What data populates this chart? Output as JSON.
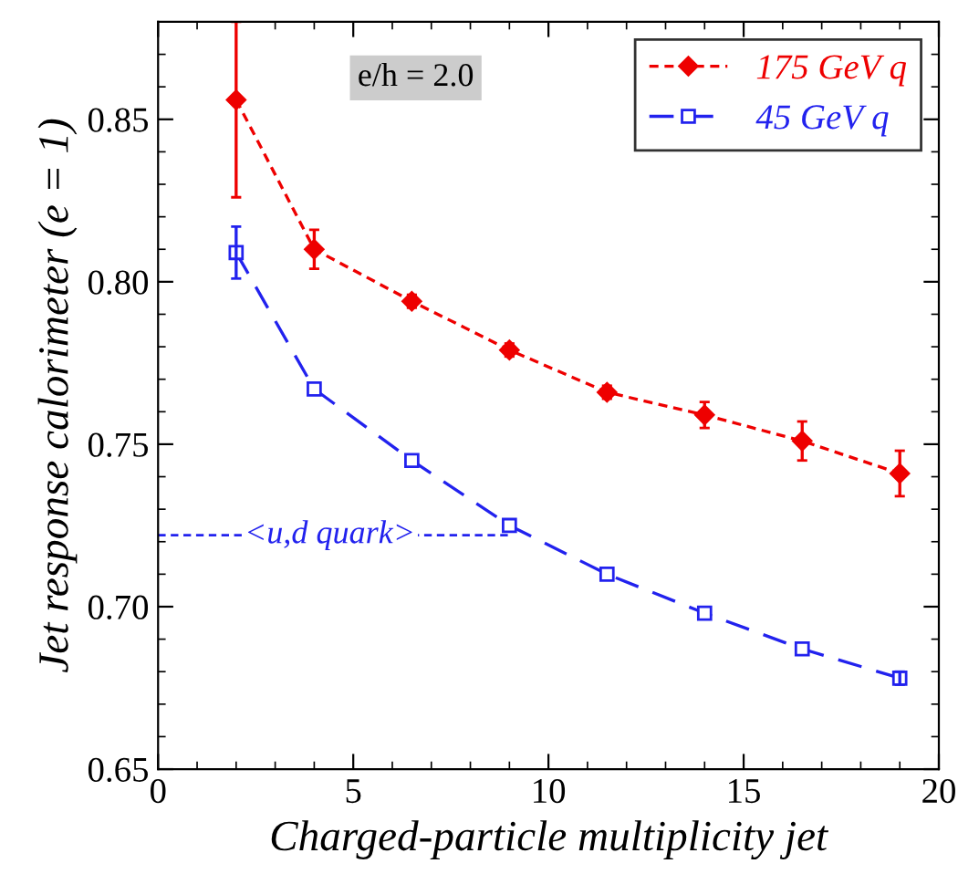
{
  "chart_data": {
    "type": "line",
    "xlabel": "Charged-particle multiplicity jet",
    "ylabel": "Jet response calorimeter (e = 1)",
    "xlim": [
      0,
      20
    ],
    "ylim": [
      0.65,
      0.88
    ],
    "xticks": [
      0,
      5,
      10,
      15,
      20
    ],
    "yticks": [
      0.65,
      {
        "value": 0.7,
        "label": "0.70"
      },
      0.75,
      {
        "value": 0.8,
        "label": "0.80"
      },
      0.85
    ],
    "legend": "top right",
    "grid": false,
    "series": [
      {
        "name": "175 GeV q",
        "color": "#ee0000",
        "marker": "diamond",
        "line_style": "dotted",
        "x": [
          2,
          4,
          6.5,
          9,
          11.5,
          14,
          16.5,
          19
        ],
        "values": [
          0.856,
          0.81,
          0.794,
          0.779,
          0.766,
          0.759,
          0.751,
          0.741
        ],
        "errors": [
          [
            0.826,
            0.88
          ],
          0.006,
          0.002,
          0.002,
          0.002,
          0.004,
          0.006,
          0.007
        ]
      },
      {
        "name": "45 GeV q",
        "color": "#2222ee",
        "marker": "square",
        "line_style": "dashed",
        "x": [
          2,
          4,
          6.5,
          9,
          11.5,
          14,
          16.5,
          19
        ],
        "values": [
          0.809,
          0.767,
          0.745,
          0.725,
          0.71,
          0.698,
          0.687,
          0.678
        ],
        "errors": [
          0.008,
          null,
          null,
          null,
          null,
          null,
          null,
          0.002
        ]
      }
    ],
    "ref_lines": [
      {
        "axis": "y",
        "value": 0.722,
        "label": "<u,d quark>",
        "color": "#2222ee",
        "line_style": "dotted"
      }
    ],
    "annotations": [
      "e/h = 2.0"
    ]
  }
}
